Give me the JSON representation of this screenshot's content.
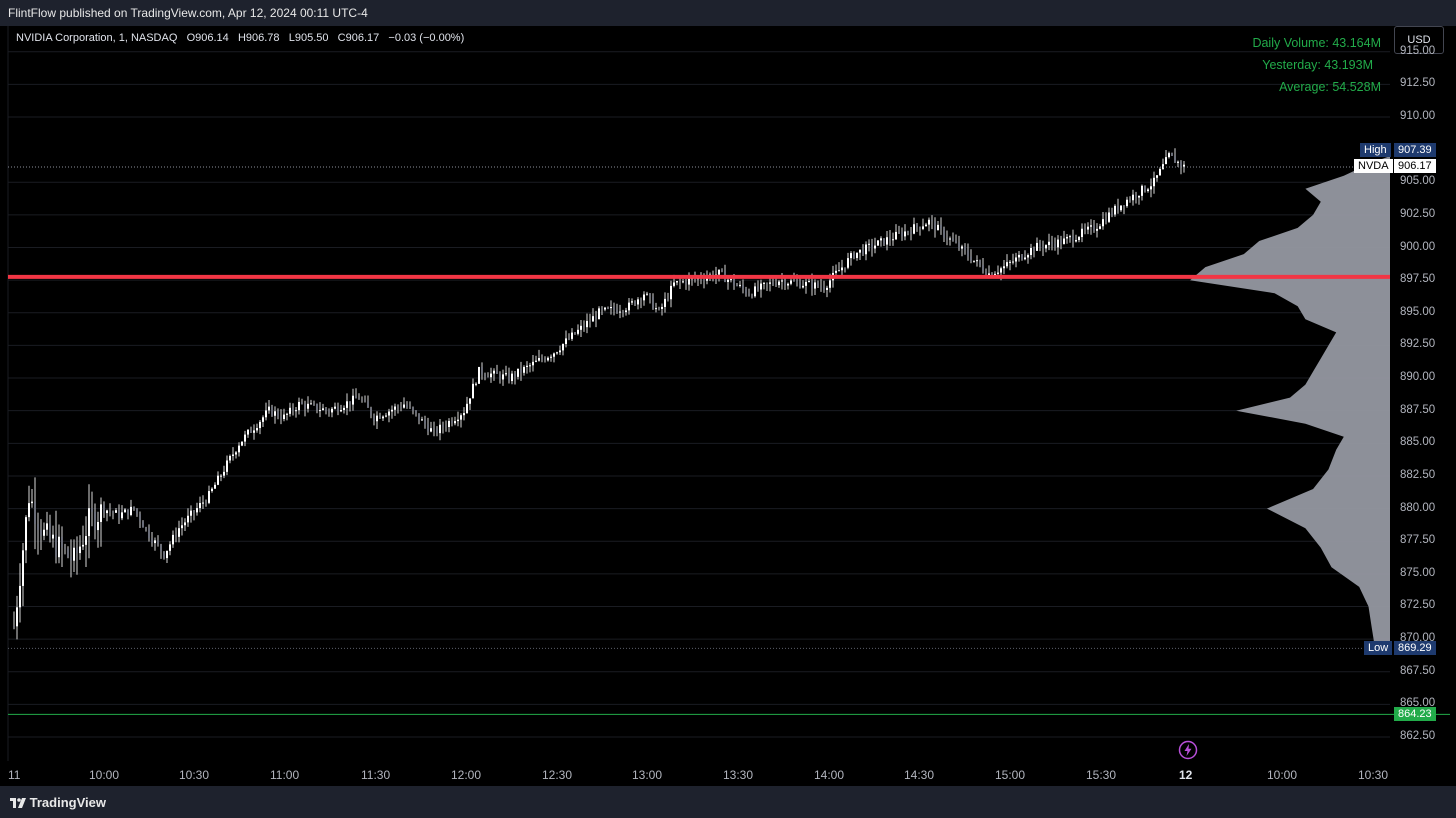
{
  "publisher": {
    "text": "FlintFlow published on TradingView.com, Apr 12, 2024 00:11 UTC-4"
  },
  "symbol": {
    "name": "NVIDIA Corporation, 1, NASDAQ",
    "open": "O906.14",
    "high": "H906.78",
    "low": "L905.50",
    "close": "C906.17",
    "change": "−0.03 (−0.00%)"
  },
  "currency_button": "USD",
  "volume": {
    "daily": "Daily Volume: 43.164M",
    "yesterday": "Yesterday: 43.193M",
    "average": "Average: 54.528M"
  },
  "price_axis": {
    "top_partial": "915.00",
    "ticks": [
      "912.50",
      "910.00",
      "905.00",
      "902.50",
      "900.00",
      "897.50",
      "895.00",
      "892.50",
      "890.00",
      "887.50",
      "885.00",
      "882.50",
      "880.00",
      "877.50",
      "875.00",
      "872.50",
      "870.00",
      "867.50",
      "865.00",
      "862.50"
    ]
  },
  "tags": {
    "high_label": "High",
    "high_value": "907.39",
    "symbol_label": "NVDA",
    "symbol_value": "906.17",
    "low_label": "Low",
    "low_value": "869.29",
    "support_value": "864.23"
  },
  "time_axis": [
    "11",
    "10:00",
    "10:30",
    "11:00",
    "11:30",
    "12:00",
    "12:30",
    "13:00",
    "13:30",
    "14:00",
    "14:30",
    "15:00",
    "15:30",
    "12",
    "10:00",
    "10:30"
  ],
  "footer": {
    "brand": "TradingView"
  },
  "colors": {
    "background": "#000000",
    "red_line": "#f23645",
    "green_line": "#22ab4a",
    "tag_blue": "#1e3a6e",
    "profile": "#9598a1"
  },
  "chart_data": {
    "type": "candlestick",
    "ylim": [
      861.5,
      916
    ],
    "key_levels": {
      "red_line": 897.75,
      "green_line": 864.23,
      "high": 907.39,
      "low": 869.29,
      "last": 906.17
    },
    "anchors": [
      [
        "09:30",
        871.0
      ],
      [
        "09:35",
        881.0
      ],
      [
        "09:40",
        878.0
      ],
      [
        "09:45",
        877.0
      ],
      [
        "09:50",
        876.0
      ],
      [
        "09:55",
        879.0
      ],
      [
        "10:00",
        880.0
      ],
      [
        "10:05",
        879.5
      ],
      [
        "10:10",
        880.0
      ],
      [
        "10:15",
        878.0
      ],
      [
        "10:20",
        876.5
      ],
      [
        "10:25",
        878.5
      ],
      [
        "10:35",
        881.0
      ],
      [
        "10:45",
        885.0
      ],
      [
        "10:55",
        887.5
      ],
      [
        "11:00",
        887.0
      ],
      [
        "11:05",
        888.0
      ],
      [
        "11:15",
        887.5
      ],
      [
        "11:25",
        888.5
      ],
      [
        "11:30",
        887.0
      ],
      [
        "11:40",
        888.0
      ],
      [
        "11:50",
        885.8
      ],
      [
        "12:00",
        887.5
      ],
      [
        "12:05",
        890.5
      ],
      [
        "12:15",
        890.0
      ],
      [
        "12:30",
        892.0
      ],
      [
        "12:45",
        895.0
      ],
      [
        "12:55",
        895.5
      ],
      [
        "13:00",
        896.5
      ],
      [
        "13:05",
        895.0
      ],
      [
        "13:10",
        897.2
      ],
      [
        "13:25",
        898.0
      ],
      [
        "13:35",
        896.5
      ],
      [
        "13:45",
        897.5
      ],
      [
        "14:00",
        897.0
      ],
      [
        "14:10",
        899.5
      ],
      [
        "14:25",
        901.0
      ],
      [
        "14:35",
        902.0
      ],
      [
        "14:45",
        900.0
      ],
      [
        "14:55",
        898.0
      ],
      [
        "15:00",
        898.5
      ],
      [
        "15:10",
        900.0
      ],
      [
        "15:20",
        900.5
      ],
      [
        "15:30",
        901.5
      ],
      [
        "15:40",
        903.5
      ],
      [
        "15:50",
        905.0
      ],
      [
        "15:55",
        907.0
      ],
      [
        "16:00",
        906.2
      ]
    ],
    "volume_profile": [
      [
        869.5,
        0.1
      ],
      [
        871,
        0.12
      ],
      [
        872.5,
        0.14
      ],
      [
        874,
        0.2
      ],
      [
        875.5,
        0.38
      ],
      [
        877,
        0.45
      ],
      [
        878.5,
        0.55
      ],
      [
        880,
        0.8
      ],
      [
        881.5,
        0.5
      ],
      [
        883,
        0.4
      ],
      [
        884.5,
        0.35
      ],
      [
        885.5,
        0.3
      ],
      [
        886.5,
        0.55
      ],
      [
        887.5,
        1.0
      ],
      [
        888.5,
        0.65
      ],
      [
        889.5,
        0.55
      ],
      [
        890.5,
        0.5
      ],
      [
        891.5,
        0.45
      ],
      [
        892.5,
        0.4
      ],
      [
        893.5,
        0.35
      ],
      [
        894.5,
        0.55
      ],
      [
        895.5,
        0.6
      ],
      [
        896.5,
        0.75
      ],
      [
        897.5,
        1.3
      ],
      [
        898.5,
        1.2
      ],
      [
        899.5,
        0.95
      ],
      [
        900.5,
        0.85
      ],
      [
        901.5,
        0.6
      ],
      [
        902.5,
        0.5
      ],
      [
        903.5,
        0.45
      ],
      [
        904.5,
        0.55
      ],
      [
        905.5,
        0.3
      ],
      [
        906.5,
        0.12
      ]
    ]
  }
}
